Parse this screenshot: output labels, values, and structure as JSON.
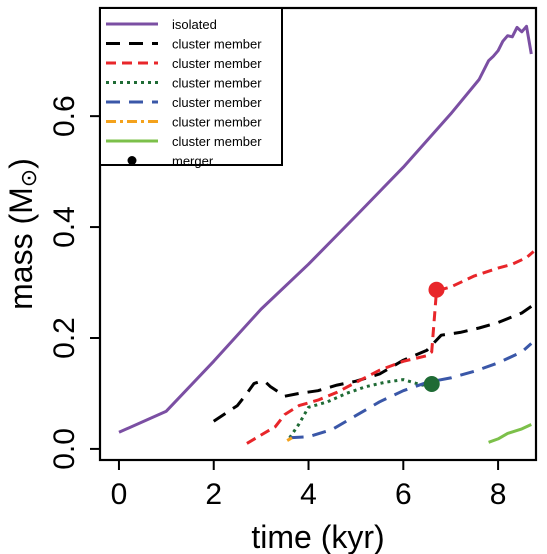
{
  "chart_data": {
    "type": "line",
    "xlabel": "time (kyr)",
    "ylabel_prefix": "mass (M",
    "ylabel_symbol": "⊙",
    "ylabel_suffix": ")",
    "xlim": [
      -0.4,
      8.8
    ],
    "ylim": [
      -0.02,
      0.795
    ],
    "xticks": [
      0,
      2,
      4,
      6,
      8
    ],
    "xtick_labels": [
      "0",
      "2",
      "4",
      "6",
      "8"
    ],
    "yticks": [
      0.0,
      0.2,
      0.4,
      0.6
    ],
    "ytick_labels": [
      "0.0",
      "0.2",
      "0.4",
      "0.6"
    ],
    "legend_position": "top-left",
    "series": [
      {
        "name": "isolated",
        "color": "#7B4FA3",
        "style": "solid",
        "points": [
          [
            0,
            0.03
          ],
          [
            1.0,
            0.068
          ],
          [
            2.0,
            0.158
          ],
          [
            3.0,
            0.252
          ],
          [
            4.0,
            0.333
          ],
          [
            5.0,
            0.42
          ],
          [
            6.0,
            0.508
          ],
          [
            7.0,
            0.604
          ],
          [
            7.6,
            0.666
          ],
          [
            7.8,
            0.7
          ],
          [
            7.9,
            0.708
          ],
          [
            8.0,
            0.718
          ],
          [
            8.1,
            0.735
          ],
          [
            8.2,
            0.745
          ],
          [
            8.3,
            0.743
          ],
          [
            8.4,
            0.76
          ],
          [
            8.45,
            0.756
          ],
          [
            8.5,
            0.752
          ],
          [
            8.6,
            0.762
          ],
          [
            8.7,
            0.712
          ]
        ]
      },
      {
        "name": "cluster member",
        "color": "#000000",
        "style": "dash-long",
        "points": [
          [
            2.0,
            0.05
          ],
          [
            2.5,
            0.078
          ],
          [
            2.7,
            0.1
          ],
          [
            2.85,
            0.118
          ],
          [
            3.0,
            0.122
          ],
          [
            3.1,
            0.12
          ],
          [
            3.2,
            0.112
          ],
          [
            3.5,
            0.095
          ],
          [
            3.8,
            0.1
          ],
          [
            4.2,
            0.105
          ],
          [
            4.6,
            0.115
          ],
          [
            5.0,
            0.122
          ],
          [
            5.5,
            0.135
          ],
          [
            6.0,
            0.16
          ],
          [
            6.5,
            0.178
          ],
          [
            6.8,
            0.205
          ],
          [
            7.2,
            0.21
          ],
          [
            7.6,
            0.218
          ],
          [
            8.0,
            0.228
          ],
          [
            8.5,
            0.245
          ],
          [
            8.7,
            0.257
          ]
        ]
      },
      {
        "name": "cluster member",
        "color": "#E8262A",
        "style": "dash-medium",
        "points": [
          [
            2.7,
            0.01
          ],
          [
            3.0,
            0.025
          ],
          [
            3.3,
            0.04
          ],
          [
            3.5,
            0.062
          ],
          [
            3.8,
            0.078
          ],
          [
            4.2,
            0.088
          ],
          [
            4.6,
            0.102
          ],
          [
            5.0,
            0.12
          ],
          [
            5.5,
            0.142
          ],
          [
            6.0,
            0.158
          ],
          [
            6.5,
            0.168
          ],
          [
            6.6,
            0.175
          ],
          [
            6.7,
            0.285
          ],
          [
            7.0,
            0.292
          ],
          [
            7.5,
            0.312
          ],
          [
            8.0,
            0.326
          ],
          [
            8.3,
            0.333
          ],
          [
            8.6,
            0.345
          ],
          [
            8.75,
            0.356
          ]
        ]
      },
      {
        "name": "cluster member",
        "color": "#1F6B35",
        "style": "dotted",
        "points": [
          [
            3.6,
            0.02
          ],
          [
            3.8,
            0.045
          ],
          [
            4.0,
            0.075
          ],
          [
            4.4,
            0.085
          ],
          [
            4.8,
            0.1
          ],
          [
            5.2,
            0.112
          ],
          [
            5.6,
            0.12
          ],
          [
            6.0,
            0.125
          ],
          [
            6.2,
            0.12
          ],
          [
            6.4,
            0.115
          ],
          [
            6.6,
            0.118
          ]
        ]
      },
      {
        "name": "cluster member",
        "color": "#3A57A8",
        "style": "dash-long",
        "points": [
          [
            3.6,
            0.02
          ],
          [
            4.0,
            0.022
          ],
          [
            4.5,
            0.035
          ],
          [
            5.0,
            0.06
          ],
          [
            5.5,
            0.085
          ],
          [
            6.0,
            0.105
          ],
          [
            6.5,
            0.12
          ],
          [
            7.0,
            0.128
          ],
          [
            7.5,
            0.14
          ],
          [
            8.0,
            0.155
          ],
          [
            8.5,
            0.175
          ],
          [
            8.7,
            0.19
          ]
        ]
      },
      {
        "name": "cluster member",
        "color": "#F4A21C",
        "style": "dash-dot",
        "points": [
          [
            3.55,
            0.015
          ],
          [
            3.65,
            0.02
          ]
        ]
      },
      {
        "name": "cluster member",
        "color": "#7CC04A",
        "style": "solid",
        "points": [
          [
            7.8,
            0.012
          ],
          [
            8.0,
            0.018
          ],
          [
            8.2,
            0.028
          ],
          [
            8.35,
            0.032
          ],
          [
            8.5,
            0.036
          ],
          [
            8.7,
            0.044
          ]
        ]
      }
    ],
    "mergers_legend": "merger",
    "mergers": [
      {
        "x": 6.7,
        "y": 0.287,
        "color": "#E8262A"
      },
      {
        "x": 6.6,
        "y": 0.117,
        "color": "#1F6B35"
      }
    ]
  }
}
